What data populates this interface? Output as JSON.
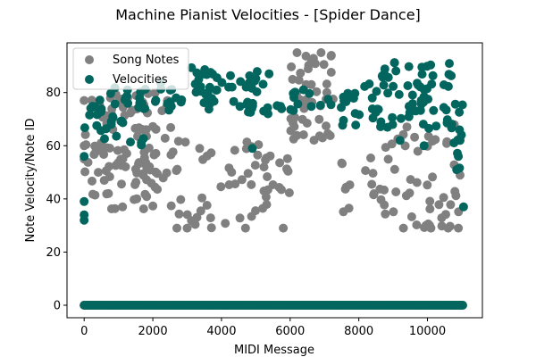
{
  "chart_data": {
    "type": "scatter",
    "title": "Machine Pianist Velocities - [Spider Dance]",
    "xlabel": "MIDI Message",
    "ylabel": "Note Velocity/Note ID",
    "xlim": [
      -500,
      11600
    ],
    "ylim": [
      -4.7,
      98.7
    ],
    "xticks": [
      0,
      2000,
      4000,
      6000,
      8000,
      10000
    ],
    "yticks": [
      0,
      20,
      40,
      60,
      80
    ],
    "grid": false,
    "legend_position": "top-left",
    "series": [
      {
        "name": "Song Notes",
        "color": "#808080",
        "bands": [
          {
            "x": [
              0,
              11050
            ],
            "y": [
              0,
              0
            ],
            "density": "continuous"
          },
          {
            "x": [
              0,
              2600
            ],
            "y": [
              36,
              80
            ],
            "density": "dense"
          },
          {
            "x": [
              2600,
              6000
            ],
            "y": [
              29,
              62
            ],
            "density": "medium"
          },
          {
            "x": [
              6000,
              7300
            ],
            "y": [
              61,
              95
            ],
            "density": "dense"
          },
          {
            "x": [
              7300,
              8800
            ],
            "y": [
              35,
              57
            ],
            "density": "medium"
          },
          {
            "x": [
              8600,
              11050
            ],
            "y": [
              29,
              68
            ],
            "density": "medium"
          }
        ],
        "points": [
          [
            0,
            77
          ],
          [
            0,
            60
          ],
          [
            0,
            55
          ],
          [
            2700,
            29
          ],
          [
            3000,
            29
          ],
          [
            4700,
            29
          ],
          [
            5800,
            29
          ],
          [
            6200,
            95
          ],
          [
            6900,
            95
          ],
          [
            7200,
            94
          ],
          [
            9300,
            29
          ],
          [
            10100,
            29
          ],
          [
            10600,
            29
          ],
          [
            10900,
            29
          ]
        ]
      },
      {
        "name": "Velocities",
        "color": "#02665f",
        "bands": [
          {
            "x": [
              0,
              11050
            ],
            "y": [
              0,
              0
            ],
            "density": "continuous"
          },
          {
            "x": [
              0,
              1800
            ],
            "y": [
              60,
              82
            ],
            "density": "dense"
          },
          {
            "x": [
              1800,
              2600
            ],
            "y": [
              72,
              84
            ],
            "density": "dense"
          },
          {
            "x": [
              2600,
              3600
            ],
            "y": [
              76,
              91
            ],
            "density": "dense"
          },
          {
            "x": [
              3600,
              6000
            ],
            "y": [
              72,
              89
            ],
            "density": "dense"
          },
          {
            "x": [
              6000,
              7300
            ],
            "y": [
              73,
              82
            ],
            "density": "dense"
          },
          {
            "x": [
              7300,
              8600
            ],
            "y": [
              67,
              84
            ],
            "density": "dense"
          },
          {
            "x": [
              8600,
              10700
            ],
            "y": [
              66,
              92
            ],
            "density": "dense"
          },
          {
            "x": [
              10700,
              11050
            ],
            "y": [
              50,
              80
            ],
            "density": "dense"
          }
        ],
        "points": [
          [
            0,
            39
          ],
          [
            0,
            34
          ],
          [
            0,
            32
          ],
          [
            0,
            56
          ],
          [
            4900,
            59
          ],
          [
            9200,
            62
          ],
          [
            9900,
            60
          ],
          [
            10850,
            51
          ],
          [
            10900,
            56
          ],
          [
            10950,
            62
          ],
          [
            11050,
            37
          ]
        ]
      }
    ]
  }
}
